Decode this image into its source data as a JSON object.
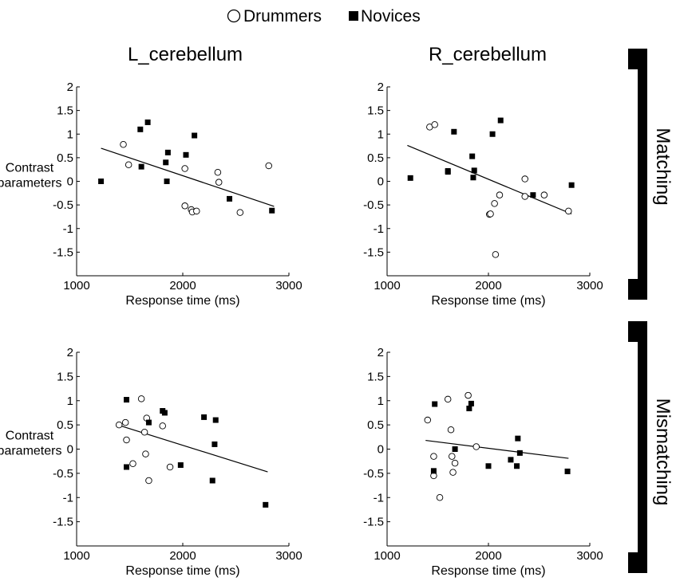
{
  "legend": {
    "drummers": "Drummers",
    "novices": "Novices"
  },
  "row_labels": [
    "Matching",
    "Mismatching"
  ],
  "panel_titles": [
    "L_cerebellum",
    "R_cerebellum"
  ],
  "chart_data": [
    {
      "type": "scatter",
      "title": "L_cerebellum",
      "row": "Matching",
      "xlabel": "Response time (ms)",
      "ylabel": "Contrast parameters",
      "xlim": [
        1000,
        3000
      ],
      "ylim": [
        -2,
        2
      ],
      "xticks": [
        1000,
        2000,
        3000
      ],
      "yticks": [
        2,
        1.5,
        1,
        0.5,
        0,
        -0.5,
        -1,
        -1.5
      ],
      "series": [
        {
          "name": "Drummers",
          "marker": "open-circle",
          "points": [
            [
              1440,
              0.78
            ],
            [
              1490,
              0.35
            ],
            [
              2020,
              0.27
            ],
            [
              2020,
              -0.52
            ],
            [
              2080,
              -0.6
            ],
            [
              2090,
              -0.65
            ],
            [
              2130,
              -0.63
            ],
            [
              2330,
              0.19
            ],
            [
              2340,
              -0.02
            ],
            [
              2540,
              -0.66
            ],
            [
              2810,
              0.33
            ]
          ]
        },
        {
          "name": "Novices",
          "marker": "filled-square",
          "points": [
            [
              1230,
              0.0
            ],
            [
              1600,
              1.1
            ],
            [
              1610,
              0.31
            ],
            [
              1670,
              1.25
            ],
            [
              1840,
              0.4
            ],
            [
              1850,
              0.0
            ],
            [
              1860,
              0.61
            ],
            [
              2030,
              0.56
            ],
            [
              2110,
              0.97
            ],
            [
              2440,
              -0.37
            ],
            [
              2840,
              -0.62
            ]
          ]
        }
      ],
      "fit_line": {
        "x": [
          1230,
          2860
        ],
        "y": [
          0.7,
          -0.53
        ]
      }
    },
    {
      "type": "scatter",
      "title": "R_cerebellum",
      "row": "Matching",
      "xlabel": "Response time (ms)",
      "ylabel": "",
      "xlim": [
        1000,
        3000
      ],
      "ylim": [
        -2,
        2
      ],
      "xticks": [
        1000,
        2000,
        3000
      ],
      "yticks": [
        2,
        1.5,
        1,
        0.5,
        0,
        -0.5,
        -1,
        -1.5
      ],
      "series": [
        {
          "name": "Drummers",
          "marker": "open-circle",
          "points": [
            [
              1420,
              1.15
            ],
            [
              1470,
              1.2
            ],
            [
              2010,
              -0.7
            ],
            [
              2020,
              -0.69
            ],
            [
              2060,
              -0.47
            ],
            [
              2070,
              -1.55
            ],
            [
              2110,
              -0.29
            ],
            [
              2360,
              0.05
            ],
            [
              2360,
              -0.32
            ],
            [
              2550,
              -0.29
            ],
            [
              2790,
              -0.63
            ]
          ]
        },
        {
          "name": "Novices",
          "marker": "filled-square",
          "points": [
            [
              1230,
              0.07
            ],
            [
              1600,
              0.22
            ],
            [
              1600,
              0.2
            ],
            [
              1660,
              1.05
            ],
            [
              1840,
              0.53
            ],
            [
              1850,
              0.08
            ],
            [
              1860,
              0.23
            ],
            [
              2040,
              1.0
            ],
            [
              2120,
              1.29
            ],
            [
              2440,
              -0.29
            ],
            [
              2820,
              -0.08
            ]
          ]
        }
      ],
      "fit_line": {
        "x": [
          1200,
          2820
        ],
        "y": [
          0.76,
          -0.69
        ]
      }
    },
    {
      "type": "scatter",
      "title": "",
      "row": "Mismatching",
      "xlabel": "Response time (ms)",
      "ylabel": "Contrast parameters",
      "xlim": [
        1000,
        3000
      ],
      "ylim": [
        -2,
        2
      ],
      "xticks": [
        1000,
        2000,
        3000
      ],
      "yticks": [
        2,
        1.5,
        1,
        0.5,
        0,
        -0.5,
        -1,
        -1.5
      ],
      "series": [
        {
          "name": "Drummers",
          "marker": "open-circle",
          "points": [
            [
              1400,
              0.5
            ],
            [
              1460,
              0.55
            ],
            [
              1470,
              0.19
            ],
            [
              1530,
              -0.3
            ],
            [
              1610,
              1.04
            ],
            [
              1640,
              0.35
            ],
            [
              1650,
              -0.1
            ],
            [
              1660,
              0.64
            ],
            [
              1680,
              -0.65
            ],
            [
              1810,
              0.48
            ],
            [
              1880,
              -0.37
            ]
          ]
        },
        {
          "name": "Novices",
          "marker": "filled-square",
          "points": [
            [
              1470,
              1.02
            ],
            [
              1470,
              -0.37
            ],
            [
              1680,
              0.55
            ],
            [
              1810,
              0.79
            ],
            [
              1830,
              0.75
            ],
            [
              1980,
              -0.33
            ],
            [
              2200,
              0.66
            ],
            [
              2280,
              -0.65
            ],
            [
              2300,
              0.1
            ],
            [
              2310,
              0.6
            ],
            [
              2780,
              -1.15
            ]
          ]
        }
      ],
      "fit_line": {
        "x": [
          1400,
          2800
        ],
        "y": [
          0.49,
          -0.47
        ]
      }
    },
    {
      "type": "scatter",
      "title": "",
      "row": "Mismatching",
      "xlabel": "Response time (ms)",
      "ylabel": "",
      "xlim": [
        1000,
        3000
      ],
      "ylim": [
        -2,
        2
      ],
      "xticks": [
        1000,
        2000,
        3000
      ],
      "yticks": [
        2,
        1.5,
        1,
        0.5,
        0,
        -0.5,
        -1,
        -1.5
      ],
      "series": [
        {
          "name": "Drummers",
          "marker": "open-circle",
          "points": [
            [
              1400,
              0.6
            ],
            [
              1460,
              -0.15
            ],
            [
              1460,
              -0.55
            ],
            [
              1520,
              -1.0
            ],
            [
              1600,
              1.03
            ],
            [
              1630,
              0.4
            ],
            [
              1640,
              -0.15
            ],
            [
              1650,
              -0.48
            ],
            [
              1670,
              -0.29
            ],
            [
              1800,
              1.11
            ],
            [
              1880,
              0.05
            ]
          ]
        },
        {
          "name": "Novices",
          "marker": "filled-square",
          "points": [
            [
              1460,
              -0.45
            ],
            [
              1470,
              0.93
            ],
            [
              1670,
              0.0
            ],
            [
              1810,
              0.84
            ],
            [
              1830,
              0.94
            ],
            [
              2000,
              -0.35
            ],
            [
              2220,
              -0.22
            ],
            [
              2280,
              -0.35
            ],
            [
              2290,
              0.22
            ],
            [
              2310,
              -0.08
            ],
            [
              2780,
              -0.46
            ]
          ]
        }
      ],
      "fit_line": {
        "x": [
          1380,
          2790
        ],
        "y": [
          0.18,
          -0.19
        ]
      }
    }
  ]
}
